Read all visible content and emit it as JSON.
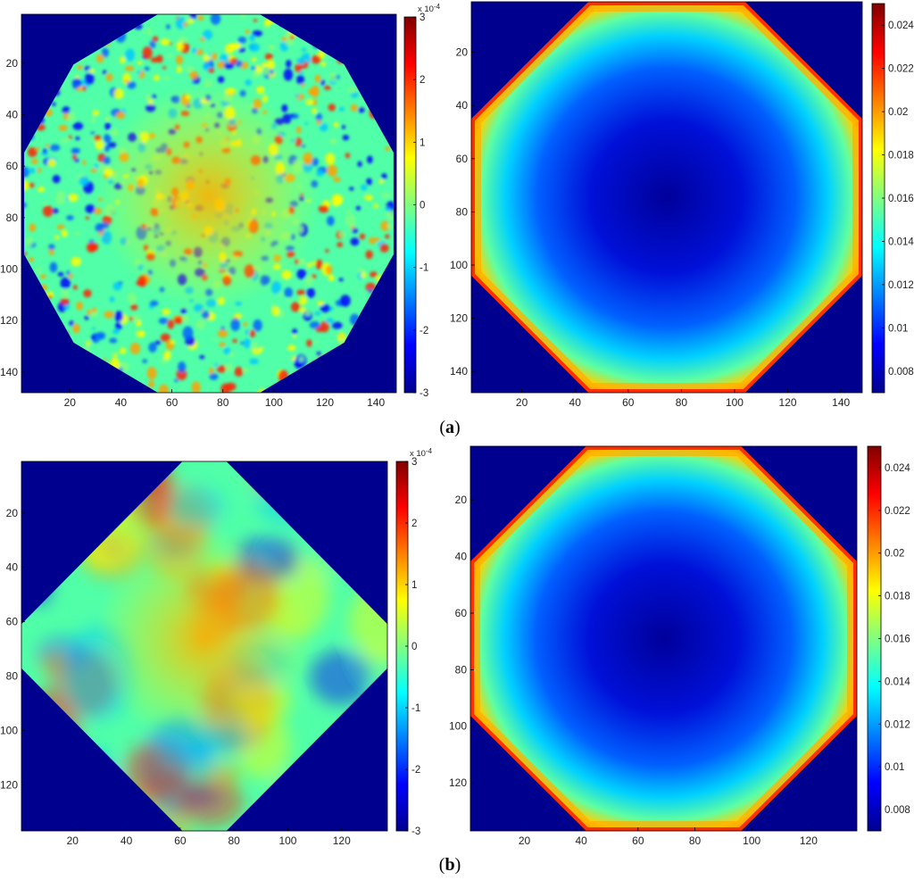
{
  "figure": {
    "label_a": "a",
    "label_b": "b"
  },
  "chart_data": [
    {
      "type": "heatmap",
      "panel": "a-left",
      "title": "",
      "xlabel": "",
      "ylabel": "",
      "xlim": [
        1,
        148
      ],
      "ylim": [
        1,
        148
      ],
      "x_ticks": [
        20,
        40,
        60,
        80,
        100,
        120,
        140
      ],
      "y_ticks": [
        20,
        40,
        60,
        80,
        100,
        120,
        140
      ],
      "footprint": "dodecagon",
      "background_color": "#00008f",
      "colormap": "jet",
      "colorbar": {
        "min": -3,
        "max": 3,
        "ticks": [
          -3,
          -2,
          -1,
          0,
          1,
          2,
          3
        ],
        "exponent_label": "x 10",
        "exponent": "-4"
      }
    },
    {
      "type": "heatmap",
      "panel": "a-right",
      "title": "",
      "xlabel": "",
      "ylabel": "",
      "xlim": [
        1,
        148
      ],
      "ylim": [
        1,
        148
      ],
      "x_ticks": [
        20,
        40,
        60,
        80,
        100,
        120,
        140
      ],
      "y_ticks": [
        20,
        40,
        60,
        80,
        100,
        120,
        140
      ],
      "footprint": "octagon",
      "background_color": "#00008f",
      "colormap": "jet",
      "colorbar": {
        "min": 0.007,
        "max": 0.025,
        "ticks": [
          0.008,
          0.01,
          0.012,
          0.014,
          0.016,
          0.018,
          0.02,
          0.022,
          0.024
        ]
      }
    },
    {
      "type": "heatmap",
      "panel": "b-left",
      "title": "",
      "xlabel": "",
      "ylabel": "",
      "xlim": [
        1,
        137
      ],
      "ylim": [
        1,
        137
      ],
      "x_ticks": [
        20,
        40,
        60,
        80,
        100,
        120
      ],
      "y_ticks": [
        20,
        40,
        60,
        80,
        100,
        120
      ],
      "footprint": "octagon",
      "background_color": "#00008f",
      "colormap": "jet",
      "colorbar": {
        "min": -3,
        "max": 3,
        "ticks": [
          -3,
          -2,
          -1,
          0,
          1,
          2,
          3
        ],
        "exponent_label": "x 10",
        "exponent": "-4"
      }
    },
    {
      "type": "heatmap",
      "panel": "b-right",
      "title": "",
      "xlabel": "",
      "ylabel": "",
      "xlim": [
        1,
        137
      ],
      "ylim": [
        1,
        137
      ],
      "x_ticks": [
        20,
        40,
        60,
        80,
        100,
        120
      ],
      "y_ticks": [
        20,
        40,
        60,
        80,
        100,
        120
      ],
      "footprint": "octagon",
      "background_color": "#00008f",
      "colormap": "jet",
      "colorbar": {
        "min": 0.007,
        "max": 0.025,
        "ticks": [
          0.008,
          0.01,
          0.012,
          0.014,
          0.016,
          0.018,
          0.02,
          0.022,
          0.024
        ]
      }
    }
  ]
}
